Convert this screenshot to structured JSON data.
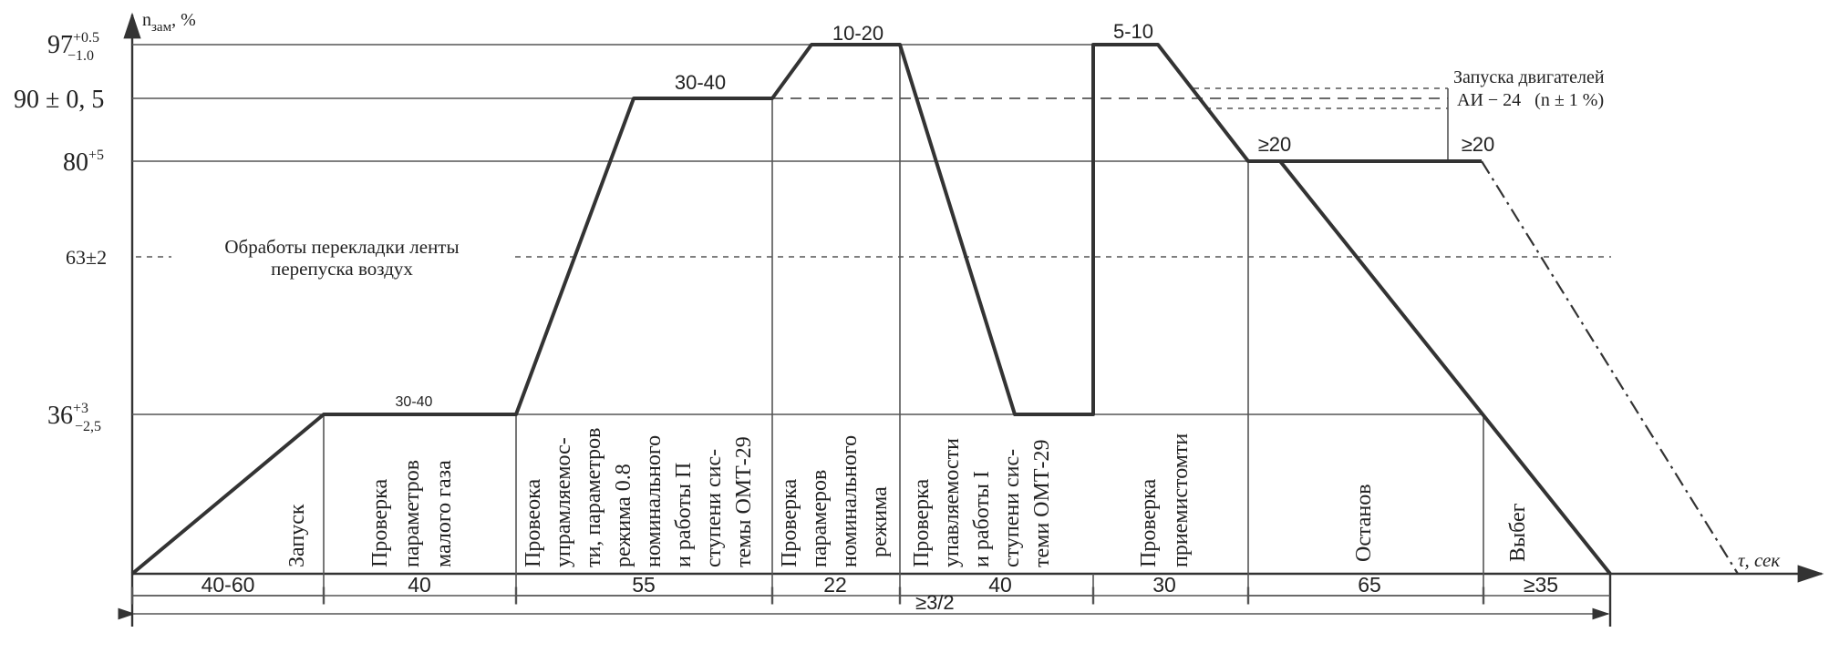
{
  "axis": {
    "y_label": "n",
    "y_label_sub": "зам",
    "y_label_unit": ", %",
    "x_label": "τ, сек"
  },
  "levels": [
    {
      "base": "97",
      "sup": "+0.5",
      "sub": "−1.0"
    },
    {
      "base": "90 ± 0, 5"
    },
    {
      "base": "80",
      "sup": "+5"
    },
    {
      "base": "63±2"
    },
    {
      "base": "36",
      "sup": "+3",
      "sub": "−2,5"
    }
  ],
  "plateau_labels": [
    "30-40",
    "30-40",
    "10-20",
    "5-10",
    "≥20",
    "≥20"
  ],
  "notes": {
    "bypass_line1": "Обработы перекладки ленты",
    "bypass_line2": "перепуска воздух",
    "ai24_line1": "Запуска двигателей",
    "ai24_line2": "АИ − 24   (n ± 1 %)"
  },
  "phases": [
    {
      "lines": [
        "Запуск"
      ],
      "duration": "40-60"
    },
    {
      "lines": [
        "Проверка",
        "параметров",
        "малого газа"
      ],
      "duration": "40"
    },
    {
      "lines": [
        "Провеока",
        "упрамляемос-",
        "ти, параметров",
        "режима 0.8",
        "номинального",
        "и работы П",
        "ступени сис-",
        "темы ОМТ-29"
      ],
      "duration": "55"
    },
    {
      "lines": [
        "Проверка",
        "парамеров",
        "номинального",
        "режима"
      ],
      "duration": "22"
    },
    {
      "lines": [
        "Проверка",
        "упавляемости",
        "и работы I",
        "ступени сис-",
        "теми ОМТ-29"
      ],
      "duration": "40"
    },
    {
      "lines": [
        "Проверка",
        "приемистомти"
      ],
      "duration": "30"
    },
    {
      "lines": [
        "Останов"
      ],
      "duration": "65"
    },
    {
      "lines": [
        "Выбег"
      ],
      "duration": "≥35"
    }
  ],
  "total_label": "≥3/2"
}
